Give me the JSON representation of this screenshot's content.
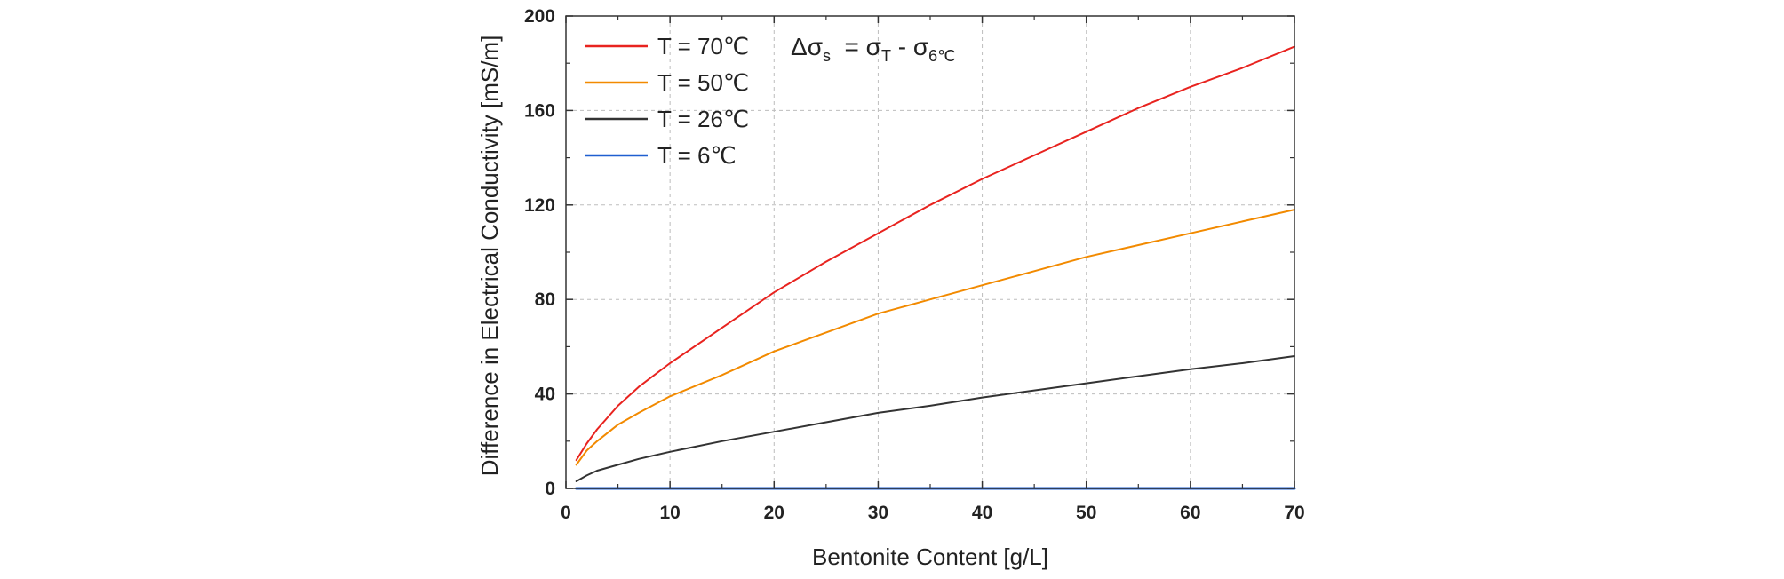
{
  "chart_data": {
    "type": "line",
    "title": "",
    "xlabel": "Bentonite Content [g/L]",
    "ylabel": "Difference in Electrical Conductivity [mS/m]",
    "xlim": [
      0,
      70
    ],
    "ylim": [
      0,
      200
    ],
    "xticks": [
      "0",
      "10",
      "20",
      "30",
      "40",
      "50",
      "60",
      "70"
    ],
    "yticks": [
      "0",
      "40",
      "80",
      "120",
      "160",
      "200"
    ],
    "grid": true,
    "legend_position": "top-left",
    "annotation": {
      "prefix": "Δσ",
      "prefix_sub": "s",
      "middle": "  = σ",
      "middle_sub": "T",
      "tail": " - σ",
      "tail_sub": "6℃"
    },
    "x": [
      1,
      2,
      3,
      5,
      7,
      10,
      15,
      20,
      25,
      30,
      35,
      40,
      45,
      50,
      55,
      60,
      65,
      70
    ],
    "series": [
      {
        "name": "T = 70℃",
        "color": "#e8231f",
        "values": [
          12,
          19,
          25,
          35,
          43,
          53,
          68,
          83,
          96,
          108,
          120,
          131,
          141,
          151,
          161,
          170,
          178,
          187
        ]
      },
      {
        "name": "T = 50℃",
        "color": "#f28a00",
        "values": [
          10,
          16,
          20,
          27,
          32,
          39,
          48,
          58,
          66,
          74,
          80,
          86,
          92,
          98,
          103,
          108,
          113,
          118
        ]
      },
      {
        "name": "T = 26℃",
        "color": "#333333",
        "values": [
          3,
          5.5,
          7.5,
          10,
          12.5,
          15.5,
          20,
          24,
          28,
          32,
          35,
          38.5,
          41.5,
          44.5,
          47.5,
          50.5,
          53,
          56
        ]
      },
      {
        "name": "T = 6℃",
        "color": "#1f5fd0",
        "values": [
          0,
          0,
          0,
          0,
          0,
          0,
          0,
          0,
          0,
          0,
          0,
          0,
          0,
          0,
          0,
          0,
          0,
          0
        ]
      }
    ]
  }
}
